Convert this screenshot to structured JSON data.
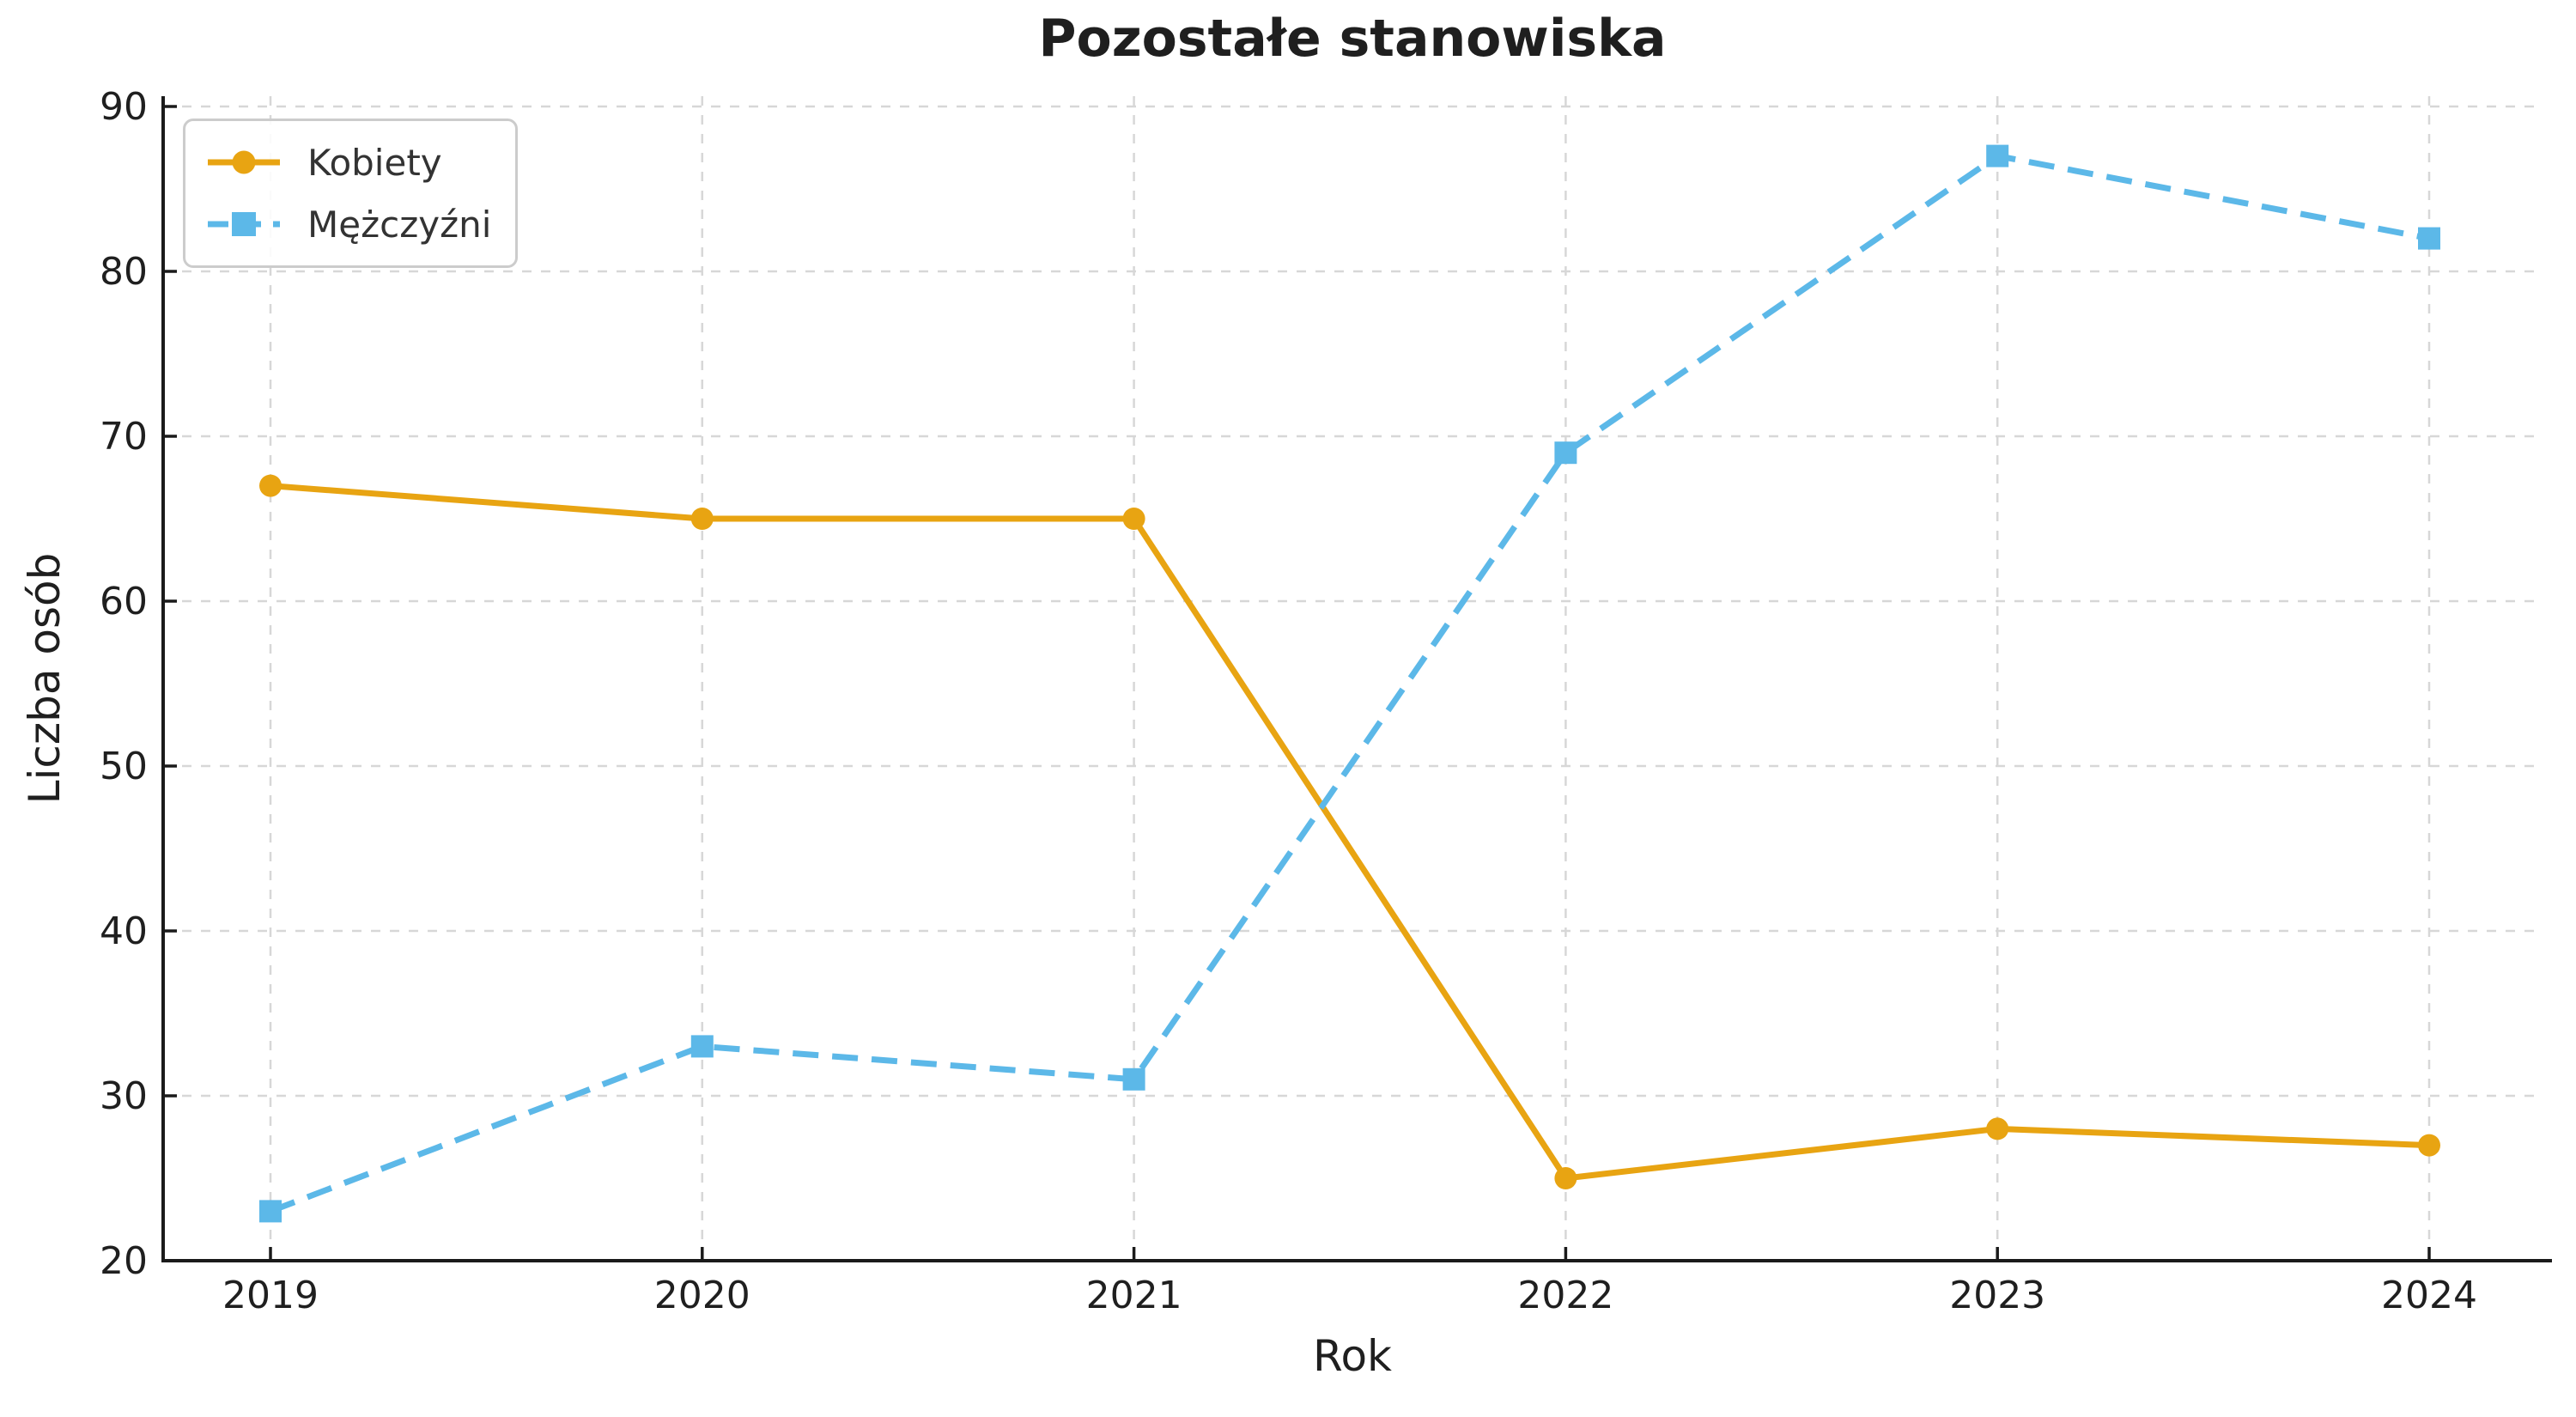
{
  "chart_data": {
    "type": "line",
    "title": "Pozostałe stanowiska",
    "xlabel": "Rok",
    "ylabel": "Liczba osób",
    "categories": [
      "2019",
      "2020",
      "2021",
      "2022",
      "2023",
      "2024"
    ],
    "series": [
      {
        "name": "Kobiety",
        "values": [
          67,
          65,
          65,
          25,
          28,
          27
        ],
        "color": "#E8A412",
        "line_style": "solid",
        "marker": "circle"
      },
      {
        "name": "Mężczyźni",
        "values": [
          23,
          33,
          31,
          69,
          87,
          82
        ],
        "color": "#5CB8E8",
        "line_style": "dashed",
        "marker": "square"
      }
    ],
    "ylim": [
      20,
      90
    ],
    "yticks": [
      20,
      30,
      40,
      50,
      60,
      70,
      80,
      90
    ],
    "grid": true,
    "legend_position": "upper left",
    "colors": {
      "grid": "#d7d7d7",
      "spine": "#1a1a1a",
      "tick_label": "#1f1f1f",
      "title": "#1f1f1f",
      "legend_border": "#cccccc",
      "legend_text": "#333333",
      "background": "#ffffff"
    }
  }
}
